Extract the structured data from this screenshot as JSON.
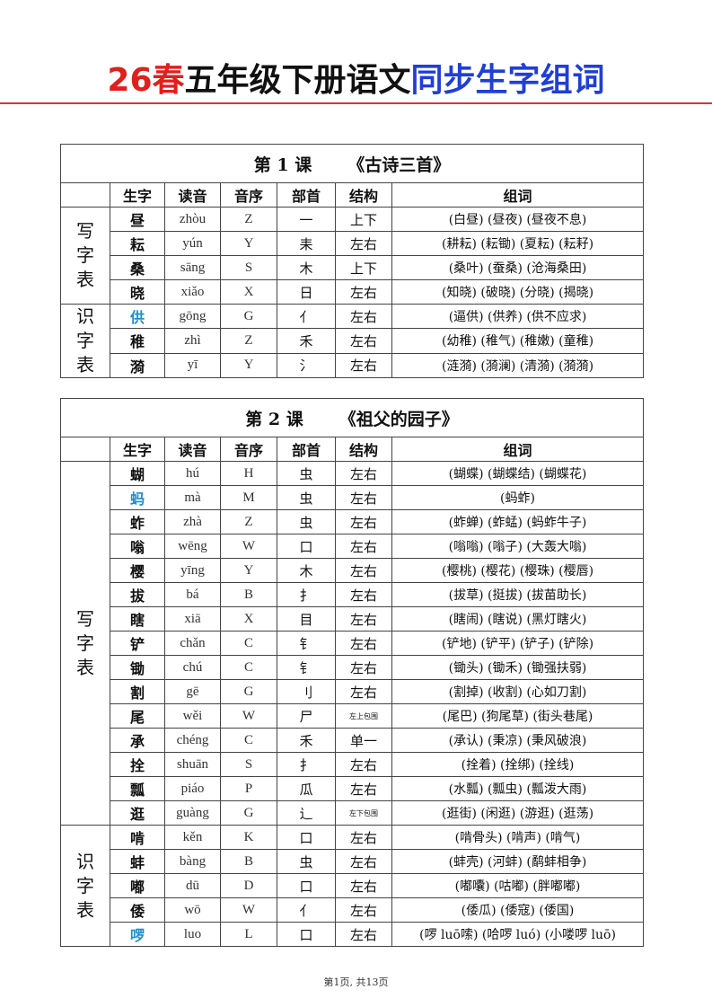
{
  "header": {
    "title_red": "26春",
    "title_black": "五年级下册语文",
    "title_blue": "同步生字组词"
  },
  "columns": [
    "生字",
    "读音",
    "音序",
    "部首",
    "结构",
    "组词"
  ],
  "lessons": [
    {
      "number": "第 1 课",
      "name": "《古诗三首》",
      "groups": [
        {
          "label": "写字表",
          "rows": [
            [
              "昼",
              "zhòu",
              "Z",
              "一",
              "上下",
              "(白昼) (昼夜) (昼夜不息)",
              false
            ],
            [
              "耘",
              "yún",
              "Y",
              "耒",
              "左右",
              "(耕耘) (耘锄) (夏耘) (耘耔)",
              false
            ],
            [
              "桑",
              "sāng",
              "S",
              "木",
              "上下",
              "(桑叶) (蚕桑) (沧海桑田)",
              false
            ],
            [
              "晓",
              "xiǎo",
              "X",
              "日",
              "左右",
              "(知晓) (破晓) (分晓) (揭晓)",
              false
            ]
          ]
        },
        {
          "label": "识字表",
          "rows": [
            [
              "供",
              "gōng",
              "G",
              "亻",
              "左右",
              "(逼供) (供养) (供不应求)",
              true
            ],
            [
              "稚",
              "zhì",
              "Z",
              "禾",
              "左右",
              "(幼稚) (稚气) (稚嫩) (童稚)",
              false
            ],
            [
              "漪",
              "yī",
              "Y",
              "氵",
              "左右",
              "(涟漪) (漪澜) (清漪) (漪漪)",
              false
            ]
          ]
        }
      ]
    },
    {
      "number": "第 2 课",
      "name": "《祖父的园子》",
      "groups": [
        {
          "label": "写字表",
          "rows": [
            [
              "蝴",
              "hú",
              "H",
              "虫",
              "左右",
              "(蝴蝶) (蝴蝶结) (蝴蝶花)",
              false
            ],
            [
              "蚂",
              "mà",
              "M",
              "虫",
              "左右",
              "(蚂蚱)",
              true
            ],
            [
              "蚱",
              "zhà",
              "Z",
              "虫",
              "左右",
              "(蚱蝉) (蚱蜢) (蚂蚱牛子)",
              false
            ],
            [
              "嗡",
              "wēng",
              "W",
              "口",
              "左右",
              "(嗡嗡) (嗡子) (大轰大嗡)",
              false
            ],
            [
              "樱",
              "yīng",
              "Y",
              "木",
              "左右",
              "(樱桃) (樱花) (樱珠) (樱唇)",
              false
            ],
            [
              "拔",
              "bá",
              "B",
              "扌",
              "左右",
              "(拔草) (挺拔) (拔苗助长)",
              false
            ],
            [
              "瞎",
              "xiā",
              "X",
              "目",
              "左右",
              "(瞎闹) (瞎说) (黑灯瞎火)",
              false
            ],
            [
              "铲",
              "chǎn",
              "C",
              "钅",
              "左右",
              "(铲地) (铲平) (铲子) (铲除)",
              false
            ],
            [
              "锄",
              "chú",
              "C",
              "钅",
              "左右",
              "(锄头) (锄禾) (锄强扶弱)",
              false
            ],
            [
              "割",
              "gē",
              "G",
              "刂",
              "左右",
              "(割掉) (收割) (心如刀割)",
              false
            ],
            [
              "尾",
              "wěi",
              "W",
              "尸",
              "左上包围",
              "(尾巴) (狗尾草) (街头巷尾)",
              false
            ],
            [
              "承",
              "chéng",
              "C",
              "禾",
              "单一",
              "(承认) (秉凉) (秉风破浪)",
              false
            ],
            [
              "拴",
              "shuān",
              "S",
              "扌",
              "左右",
              "(拴着) (拴绑) (拴线)",
              false
            ],
            [
              "瓢",
              "piáo",
              "P",
              "瓜",
              "左右",
              "(水瓢) (瓢虫) (瓢泼大雨)",
              false
            ],
            [
              "逛",
              "guàng",
              "G",
              "辶",
              "左下包围",
              "(逛街) (闲逛) (游逛) (逛荡)",
              false
            ]
          ]
        },
        {
          "label": "识字表",
          "rows": [
            [
              "啃",
              "kěn",
              "K",
              "口",
              "左右",
              "(啃骨头) (啃声) (啃气)",
              false
            ],
            [
              "蚌",
              "bàng",
              "B",
              "虫",
              "左右",
              "(蚌壳) (河蚌) (鹬蚌相争)",
              false
            ],
            [
              "嘟",
              "dū",
              "D",
              "口",
              "左右",
              "(嘟囔) (咕嘟) (胖嘟嘟)",
              false
            ],
            [
              "倭",
              "wō",
              "W",
              "亻",
              "左右",
              "(倭瓜) (倭寇) (倭国)",
              false
            ],
            [
              "啰",
              "luo",
              "L",
              "口",
              "左右",
              "(啰 luō嗦) (哈啰 luó) (小喽啰 luō)",
              true
            ]
          ]
        }
      ]
    }
  ],
  "footer": {
    "page": "第1页, 共13页"
  },
  "colors": {
    "title_red": "#e0201c",
    "title_blue": "#1f3fd6",
    "highlight": "#1a8fd0",
    "rule": "#d9352e"
  }
}
